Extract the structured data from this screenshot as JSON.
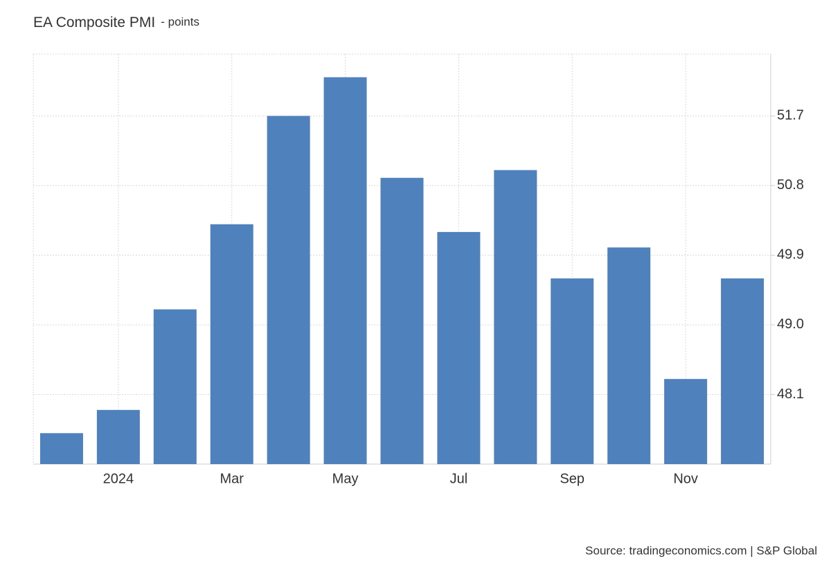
{
  "chart_data": {
    "type": "bar",
    "title": "EA Composite PMI",
    "subtitle": "- points",
    "categories": [
      null,
      "2024",
      null,
      "Mar",
      null,
      "May",
      null,
      "Jul",
      null,
      "Sep",
      null,
      "Nov",
      null
    ],
    "values": [
      47.6,
      47.9,
      49.2,
      50.3,
      51.7,
      52.2,
      50.9,
      50.2,
      51.0,
      49.6,
      50.0,
      48.3,
      49.6
    ],
    "color": "#4f81bd",
    "ylim": [
      47.2,
      52.5
    ],
    "yticks": [
      48.1,
      {
        "value": 49.0,
        "label": "49.0"
      },
      49.9,
      50.8,
      51.7
    ],
    "grid": true,
    "source": "Source: tradingeconomics.com | S&P Global"
  }
}
